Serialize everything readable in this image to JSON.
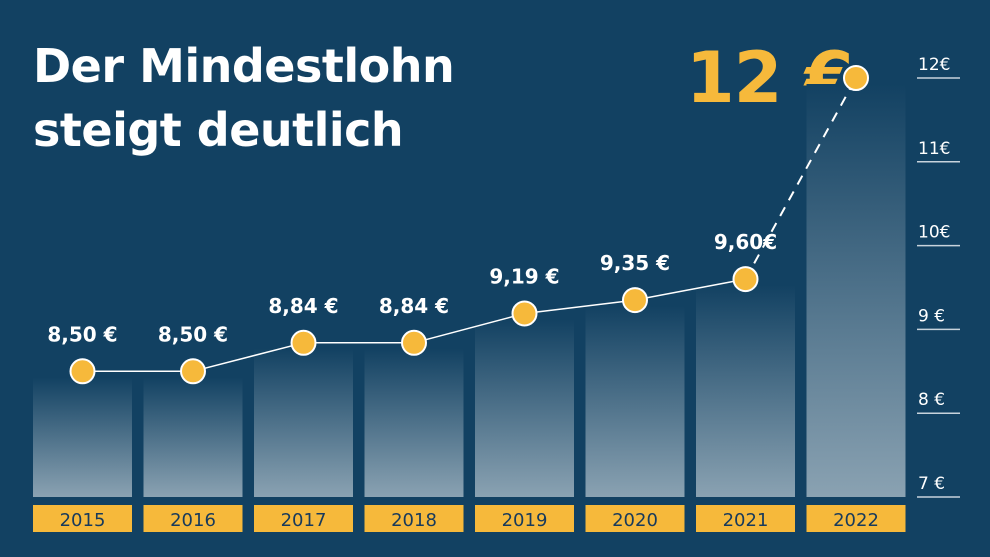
{
  "title": {
    "line1": "Der Mindestlohn",
    "line2": "steigt deutlich"
  },
  "highlight": "12 €",
  "colors": {
    "background": "#124162",
    "accent": "#f6b93b",
    "text": "#ffffff",
    "year_text": "#173a5c"
  },
  "chart_data": {
    "type": "bar",
    "title": "Der Mindestlohn steigt deutlich",
    "categories": [
      "2015",
      "2016",
      "2017",
      "2018",
      "2019",
      "2020",
      "2021",
      "2022"
    ],
    "values": [
      8.5,
      8.5,
      8.84,
      8.84,
      9.19,
      9.35,
      9.6,
      12.0
    ],
    "value_labels": [
      "8,50 €",
      "8,50 €",
      "8,84 €",
      "8,84 €",
      "9,19 €",
      "9,35 €",
      "9,60€",
      ""
    ],
    "overlay": "line with markers; dashed segment 2021→2022",
    "ylim": [
      7,
      12
    ],
    "yticks": [
      7,
      8,
      9,
      10,
      11,
      12
    ],
    "ytick_labels": [
      "7 €",
      "8 €",
      "9 €",
      "10€",
      "11€",
      "12€"
    ],
    "yaxis_position": "right",
    "xlabel": "",
    "ylabel": ""
  }
}
